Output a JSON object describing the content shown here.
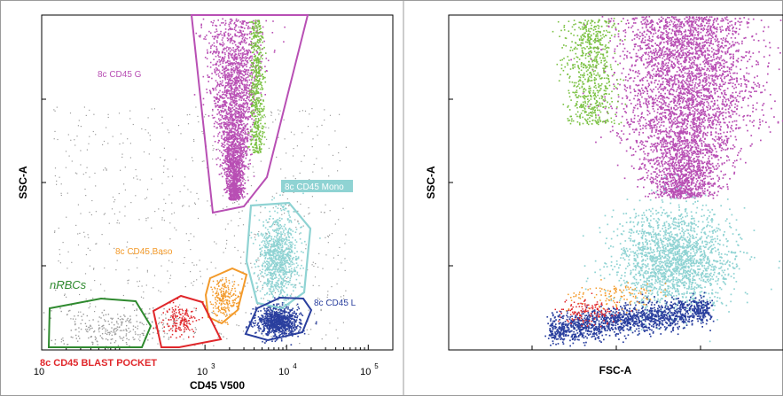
{
  "figure": {
    "colors": {
      "granulocytes": "#b84fb4",
      "granulocytes_dense": "#a25aa6",
      "eosinophils": "#7ac142",
      "monocytes": "#8fd3d3",
      "lymphocytes": "#2a3f9e",
      "basophils": "#f39a2a",
      "blasts": "#e0272b",
      "nrbcs": "#2f8a2f",
      "debris": "#9a9a9a"
    }
  },
  "chart_data": [
    {
      "type": "scatter",
      "title": "",
      "xlabel": "CD45 V500",
      "ylabel": "SSC-A",
      "x_scale": "log",
      "xlim": [
        10,
        200000
      ],
      "ylim": [
        0,
        262144
      ],
      "x_ticks": [
        {
          "value": 10,
          "label": "10"
        },
        {
          "value": 1000,
          "label": "10",
          "sup": "3"
        },
        {
          "value": 10000,
          "label": "10",
          "sup": "4"
        },
        {
          "value": 100000,
          "label": "10",
          "sup": "5"
        }
      ],
      "gates": [
        {
          "label": "8c CD45 G",
          "color": "#b84fb4"
        },
        {
          "label": "8c CD45 Mono",
          "color": "#8fd3d3"
        },
        {
          "label": "8c CD45 Baso",
          "color": "#f39a2a"
        },
        {
          "label": "8c CD45 L",
          "color": "#2a3f9e"
        },
        {
          "label": "nRBCs",
          "color": "#2f8a2f"
        },
        {
          "label": "8c CD45 BLAST POCKET",
          "color": "#e0272b"
        }
      ],
      "series": [
        {
          "color": "#b84fb4",
          "cx": 4500,
          "cy": 190000
        },
        {
          "color": "#7ac142",
          "cx": 8000,
          "cy": 210000
        },
        {
          "color": "#8fd3d3",
          "cx": 9500,
          "cy": 75000
        },
        {
          "color": "#2a3f9e",
          "cx": 11000,
          "cy": 22000
        },
        {
          "color": "#f39a2a",
          "cx": 3500,
          "cy": 40000
        },
        {
          "color": "#e0272b",
          "cx": 900,
          "cy": 25000
        },
        {
          "color": "#9a9a9a",
          "cx": 30,
          "cy": 20000
        }
      ]
    },
    {
      "type": "scatter",
      "title": "",
      "xlabel": "FSC-A",
      "ylabel": "SSC-A",
      "xlim": [
        0,
        262144
      ],
      "ylim": [
        0,
        262144
      ],
      "series": [
        {
          "color": "#b84fb4",
          "cx": 150000,
          "cy": 190000
        },
        {
          "color": "#7ac142",
          "cx": 80000,
          "cy": 230000
        },
        {
          "color": "#8fd3d3",
          "cx": 130000,
          "cy": 65000
        },
        {
          "color": "#2a3f9e",
          "cx": 90000,
          "cy": 25000
        },
        {
          "color": "#f39a2a",
          "cx": 80000,
          "cy": 40000
        },
        {
          "color": "#e0272b",
          "cx": 70000,
          "cy": 28000
        }
      ]
    }
  ]
}
